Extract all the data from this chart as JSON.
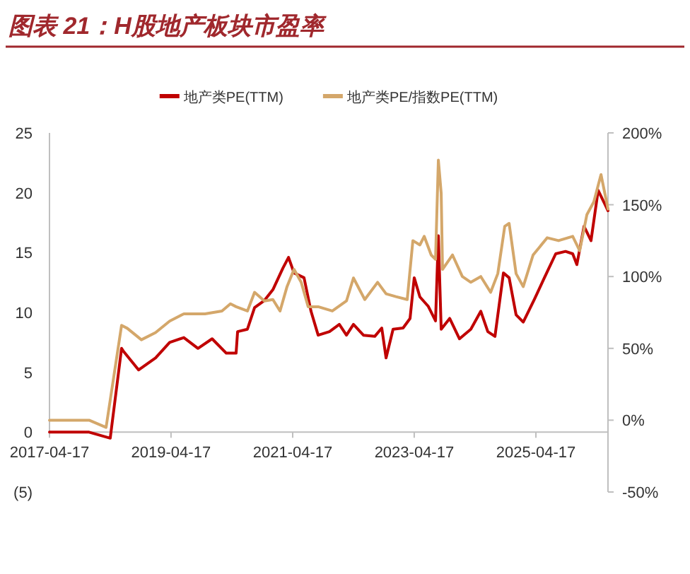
{
  "chart_data": {
    "type": "line",
    "title": "图表 21：H股地产板块市盈率",
    "xlim": [
      "2017-04-17",
      "2026-06-24"
    ],
    "xticks": [
      "2017-04-17",
      "2019-04-17",
      "2021-04-17",
      "2023-04-17",
      "2025-04-17"
    ],
    "ylim": [
      -5,
      25
    ],
    "yticks": [
      {
        "value": -5,
        "label": "(5)"
      },
      0,
      5,
      10,
      15,
      20,
      25
    ],
    "y2lim": [
      -50,
      200
    ],
    "y2ticks": [
      {
        "value": -50,
        "label": "-50%"
      },
      {
        "value": 0,
        "label": "0%"
      },
      {
        "value": 50,
        "label": "50%"
      },
      {
        "value": 100,
        "label": "100%"
      },
      {
        "value": 150,
        "label": "150%"
      },
      {
        "value": 200,
        "label": "200%"
      }
    ],
    "grid": false,
    "legend": "top",
    "marker": "none",
    "line_style": "solid",
    "series": [
      {
        "name": "地产类PE(TTM)",
        "color": "#c00000",
        "x": [
          "2017-04-17",
          "2017-12-11",
          "2018-04-17",
          "2018-06-24",
          "2018-07-03",
          "2018-10-04",
          "2019-01-14",
          "2019-04-09",
          "2019-07-03",
          "2019-09-26",
          "2019-12-20",
          "2020-03-14",
          "2020-05-12",
          "2020-05-21",
          "2020-07-19",
          "2020-08-31",
          "2020-10-29",
          "2020-12-19",
          "2021-02-17",
          "2021-03-23",
          "2021-04-25",
          "2021-06-24",
          "2021-08-05",
          "2021-09-17",
          "2021-11-24",
          "2022-01-22",
          "2022-03-06",
          "2022-04-17",
          "2022-06-16",
          "2022-08-23",
          "2022-10-04",
          "2022-10-30",
          "2022-12-11",
          "2023-02-09",
          "2023-03-23",
          "2023-04-17",
          "2023-05-21",
          "2023-07-11",
          "2023-08-23",
          "2023-09-09",
          "2023-09-26",
          "2023-11-16",
          "2024-01-14",
          "2024-03-22",
          "2024-05-21",
          "2024-07-02",
          "2024-08-14",
          "2024-10-04",
          "2024-11-07",
          "2024-12-19",
          "2025-01-31",
          "2025-04-08",
          "2025-06-07",
          "2025-08-14",
          "2025-10-12",
          "2025-11-24",
          "2025-12-19",
          "2026-01-31",
          "2026-03-14",
          "2026-04-26",
          "2026-06-07",
          "2026-06-24"
        ],
        "values": [
          0,
          0,
          -0.5,
          7,
          6.8,
          5.2,
          6.2,
          7.5,
          7.9,
          7.0,
          7.8,
          6.6,
          6.6,
          8.4,
          8.6,
          10.4,
          11,
          11.9,
          13.7,
          14.6,
          13.3,
          12.9,
          10.1,
          8.1,
          8.4,
          9.0,
          8.1,
          9.0,
          8.1,
          8.0,
          8.7,
          6.2,
          8.6,
          8.7,
          9.5,
          12.9,
          11.3,
          10.5,
          9.3,
          16.4,
          8.6,
          9.5,
          7.8,
          8.6,
          10.1,
          8.4,
          8.0,
          13.3,
          12.9,
          9.8,
          9.2,
          11.1,
          12.9,
          14.9,
          15.1,
          14.9,
          14.0,
          17.2,
          16.0,
          20.2,
          19.0,
          18.5
        ]
      },
      {
        "name": "地产类PE/指数PE(TTM)",
        "color": "#d4a76a",
        "axis": "y2",
        "x": [
          "2017-04-17",
          "2017-12-11",
          "2018-03-23",
          "2018-06-24",
          "2018-07-28",
          "2018-10-21",
          "2019-01-14",
          "2019-04-09",
          "2019-07-03",
          "2019-11-07",
          "2020-02-17",
          "2020-04-08",
          "2020-05-12",
          "2020-07-19",
          "2020-08-31",
          "2020-10-29",
          "2020-12-19",
          "2021-01-31",
          "2021-03-14",
          "2021-04-25",
          "2021-06-07",
          "2021-07-19",
          "2021-09-17",
          "2021-12-11",
          "2022-03-06",
          "2022-04-17",
          "2022-06-24",
          "2022-09-09",
          "2022-10-30",
          "2022-12-28",
          "2023-03-06",
          "2023-04-09",
          "2023-05-21",
          "2023-06-16",
          "2023-07-28",
          "2023-08-23",
          "2023-09-09",
          "2023-09-26",
          "2023-10-04",
          "2023-12-03",
          "2024-01-31",
          "2024-03-22",
          "2024-05-21",
          "2024-07-19",
          "2024-08-31",
          "2024-10-12",
          "2024-11-07",
          "2024-12-19",
          "2025-01-31",
          "2025-03-31",
          "2025-06-24",
          "2025-08-31",
          "2025-11-24",
          "2026-01-05",
          "2026-02-17",
          "2026-03-31",
          "2026-05-13",
          "2026-06-24"
        ],
        "values": [
          0,
          0,
          -5,
          66,
          64,
          56,
          61,
          69,
          74,
          74,
          76,
          81,
          79,
          76,
          89,
          83,
          84,
          76,
          93,
          105,
          96,
          79,
          79,
          76,
          83,
          99,
          84,
          96,
          88,
          86,
          84,
          125,
          122,
          128,
          115,
          112,
          181,
          158,
          105,
          115,
          100,
          96,
          100,
          89,
          102,
          135,
          137,
          102,
          93,
          115,
          127,
          125,
          128,
          118,
          143,
          152,
          171,
          147
        ]
      }
    ]
  }
}
